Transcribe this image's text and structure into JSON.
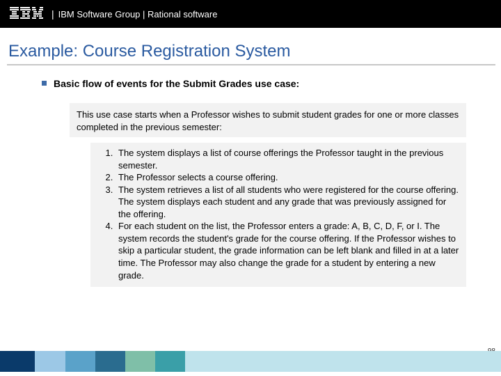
{
  "header": {
    "brand_text": "IBM Software Group | Rational software",
    "header_bg": "#000000",
    "header_fg": "#ffffff"
  },
  "title": {
    "text": "Example: Course Registration System",
    "color": "#2a5aa0",
    "fontsize": 24,
    "underline_color": "#c7c7c7"
  },
  "bullet": {
    "square_color": "#3d6ba8",
    "text": "Basic flow of events for the Submit Grades use case:"
  },
  "intro": {
    "text": "This use case starts when a Professor wishes to submit student grades for one or more classes completed in the previous semester:",
    "bg": "#f2f2f2"
  },
  "steps": {
    "bg": "#f2f2f2",
    "items": [
      "The system displays a list of course offerings the Professor taught in the previous semester.",
      "The Professor selects a course offering.",
      "The system retrieves a list of all students who were registered for the course offering. The system displays each student and any grade that was previously assigned for the offering.",
      "For each student on the list, the Professor enters a grade: A, B, C, D, F, or I.  The system records the student's grade for the course offering.  If the Professor wishes to skip a particular student, the grade information can be left blank and filled in at a later time.  The Professor may also change the grade for a student by entering a new grade."
    ]
  },
  "footer": {
    "page_number": "98",
    "segments": [
      {
        "color": "#0a3a6a",
        "width": "7%"
      },
      {
        "color": "#9cc8e6",
        "width": "6%"
      },
      {
        "color": "#5aa2c9",
        "width": "6%"
      },
      {
        "color": "#2a6c8f",
        "width": "6%"
      },
      {
        "color": "#7fbfa8",
        "width": "6%"
      },
      {
        "color": "#3a9fa8",
        "width": "6%"
      },
      {
        "color": "#bfe3ec",
        "width": "63%"
      }
    ]
  }
}
